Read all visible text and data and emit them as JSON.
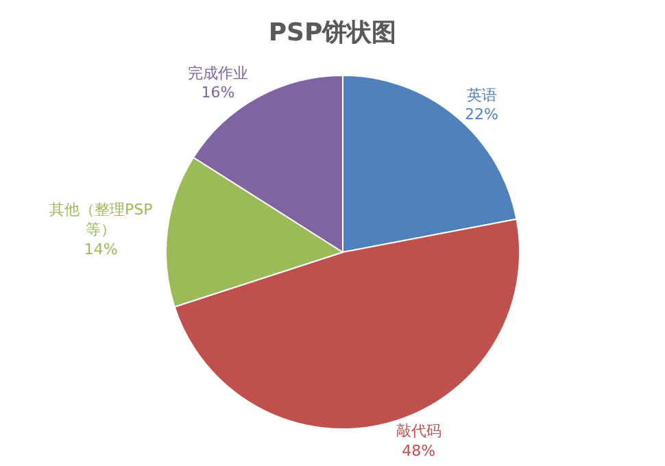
{
  "chart_data": {
    "type": "pie",
    "title": "PSP饼状图",
    "categories": [
      "英语",
      "敲代码",
      "其他（整理PSP等）",
      "完成作业"
    ],
    "values": [
      22,
      48,
      14,
      16
    ],
    "colors": [
      "#4f81bd",
      "#c0504d",
      "#9bbb59",
      "#8064a2"
    ],
    "value_labels": [
      "22%",
      "48%",
      "14%",
      "16%"
    ],
    "legend": false
  }
}
